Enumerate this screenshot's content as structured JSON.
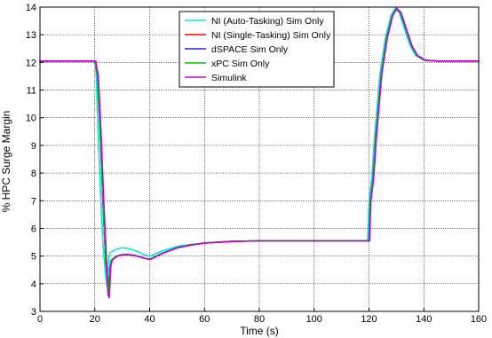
{
  "chart_data": {
    "type": "line",
    "xlabel": "Time (s)",
    "ylabel": "% HPC Surge Margin",
    "xlim": [
      0,
      160
    ],
    "ylim": [
      3,
      14
    ],
    "xticks": [
      0,
      20,
      40,
      60,
      80,
      100,
      120,
      140,
      160
    ],
    "yticks": [
      3,
      4,
      5,
      6,
      7,
      8,
      9,
      10,
      11,
      12,
      13,
      14
    ],
    "grid": true,
    "legend_position": "top-center",
    "series": [
      {
        "name": "NI (Auto-Tasking) Sim Only",
        "color": "#00e6e6",
        "x": [
          0,
          20,
          20.5,
          21,
          22,
          23,
          24,
          24.5,
          25,
          25.5,
          26,
          27,
          28,
          30,
          32,
          34,
          36,
          38,
          40,
          45,
          50,
          55,
          60,
          70,
          80,
          100,
          119.5,
          120,
          121,
          122,
          124,
          126,
          128,
          129.5,
          131,
          133,
          135,
          137,
          140,
          145,
          160
        ],
        "y": [
          12.05,
          12.05,
          11.6,
          10.0,
          7.5,
          5.4,
          4.2,
          3.9,
          4.8,
          5.1,
          5.15,
          5.2,
          5.25,
          5.3,
          5.28,
          5.22,
          5.15,
          5.05,
          5.0,
          5.2,
          5.35,
          5.42,
          5.47,
          5.53,
          5.55,
          5.55,
          5.55,
          7.0,
          7.8,
          9.3,
          11.6,
          12.9,
          13.7,
          13.95,
          13.8,
          13.2,
          12.6,
          12.25,
          12.08,
          12.05,
          12.05
        ]
      },
      {
        "name": "NI (Single-Tasking) Sim Only",
        "color": "#ff0000",
        "x": [
          0,
          20,
          21,
          22,
          23,
          24,
          25,
          25.5,
          26,
          28,
          30,
          32,
          34,
          36,
          38,
          40,
          45,
          50,
          55,
          60,
          70,
          80,
          100,
          120,
          120.5,
          121.5,
          122.5,
          124.5,
          126.5,
          128.5,
          130,
          131.5,
          133.5,
          135.5,
          137.5,
          140.5,
          145,
          160
        ],
        "y": [
          12.05,
          12.05,
          11.5,
          9.4,
          6.9,
          4.8,
          3.7,
          4.6,
          4.85,
          5.0,
          5.05,
          5.05,
          5.03,
          4.98,
          4.92,
          4.88,
          5.12,
          5.3,
          5.4,
          5.47,
          5.53,
          5.55,
          5.55,
          5.55,
          7.0,
          7.8,
          9.3,
          11.6,
          12.9,
          13.7,
          13.95,
          13.8,
          13.2,
          12.6,
          12.25,
          12.08,
          12.05,
          12.05
        ]
      },
      {
        "name": "dSPACE Sim Only",
        "color": "#1a1aff",
        "x": [
          0,
          20,
          21,
          22,
          23,
          24,
          25,
          25.5,
          26,
          28,
          30,
          32,
          34,
          36,
          38,
          40,
          45,
          50,
          55,
          60,
          70,
          80,
          100,
          120,
          120.5,
          121.5,
          122.5,
          124.5,
          126.5,
          128.5,
          130,
          131.5,
          133.5,
          135.5,
          137.5,
          140.5,
          145,
          160
        ],
        "y": [
          12.05,
          12.05,
          11.5,
          9.4,
          6.9,
          4.8,
          3.7,
          4.6,
          4.85,
          5.0,
          5.05,
          5.05,
          5.03,
          4.98,
          4.92,
          4.88,
          5.12,
          5.3,
          5.4,
          5.47,
          5.53,
          5.55,
          5.55,
          5.55,
          7.0,
          7.8,
          9.3,
          11.6,
          12.9,
          13.7,
          13.95,
          13.8,
          13.2,
          12.6,
          12.25,
          12.08,
          12.05,
          12.05
        ]
      },
      {
        "name": "xPC Sim Only",
        "color": "#00cc00",
        "x": [
          0,
          20,
          21,
          22,
          23,
          24,
          25,
          25.5,
          26,
          28,
          30,
          32,
          34,
          36,
          38,
          40,
          45,
          50,
          55,
          60,
          70,
          80,
          100,
          120,
          120.5,
          121.5,
          122.5,
          124.5,
          126.5,
          128.5,
          130,
          131.5,
          133.5,
          135.5,
          137.5,
          140.5,
          145,
          160
        ],
        "y": [
          12.05,
          12.05,
          11.5,
          9.4,
          6.9,
          4.8,
          3.7,
          4.6,
          4.85,
          5.0,
          5.05,
          5.05,
          5.03,
          4.98,
          4.92,
          4.88,
          5.12,
          5.3,
          5.4,
          5.47,
          5.53,
          5.55,
          5.55,
          5.55,
          7.0,
          7.8,
          9.3,
          11.6,
          12.9,
          13.7,
          13.95,
          13.8,
          13.2,
          12.6,
          12.25,
          12.08,
          12.05,
          12.05
        ]
      },
      {
        "name": "Simulink",
        "color": "#cc00cc",
        "x": [
          0,
          20.3,
          21.3,
          22.3,
          23.3,
          24.3,
          24.8,
          25.3,
          25.8,
          26.3,
          28.3,
          30.3,
          32.3,
          34.3,
          36.3,
          38.3,
          40.3,
          45.3,
          50.3,
          55.3,
          60.3,
          70.3,
          80,
          100,
          120.2,
          120.7,
          121.7,
          122.7,
          124.7,
          126.7,
          128.7,
          130.2,
          131.7,
          133.7,
          135.7,
          137.7,
          140.7,
          145,
          160
        ],
        "y": [
          12.05,
          12.05,
          11.5,
          9.4,
          6.9,
          4.8,
          3.6,
          3.5,
          4.6,
          4.85,
          5.0,
          5.05,
          5.05,
          5.03,
          4.98,
          4.92,
          4.88,
          5.12,
          5.3,
          5.4,
          5.47,
          5.53,
          5.55,
          5.55,
          5.55,
          7.0,
          7.8,
          9.3,
          11.6,
          12.9,
          13.7,
          13.95,
          13.8,
          13.2,
          12.6,
          12.25,
          12.08,
          12.05,
          12.05
        ]
      }
    ]
  }
}
